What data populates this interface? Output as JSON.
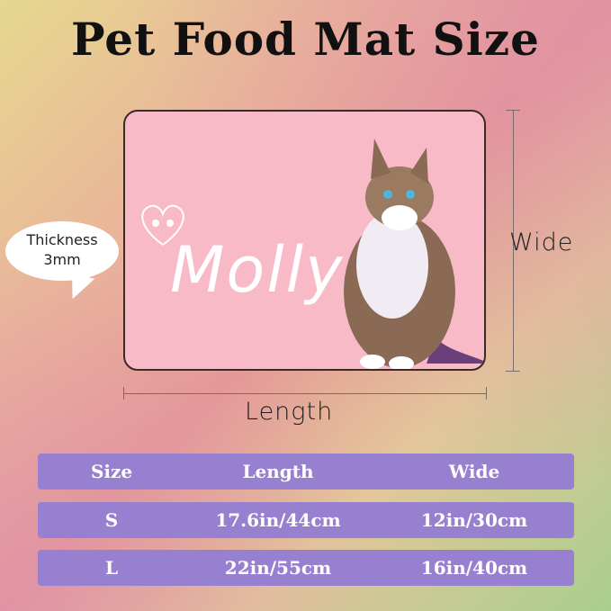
{
  "title": "Pet Food Mat Size",
  "mat": {
    "name": "Molly",
    "color": "#f9bac7"
  },
  "thickness": {
    "label": "Thickness",
    "value": "3mm"
  },
  "dimensions": {
    "wide": "Wide",
    "length": "Length"
  },
  "table": {
    "color": "#9880d0",
    "headers": [
      "Size",
      "Length",
      "Wide"
    ],
    "rows": [
      [
        "S",
        "17.6in/44cm",
        "12in/30cm"
      ],
      [
        "L",
        "22in/55cm",
        "16in/40cm"
      ]
    ]
  }
}
